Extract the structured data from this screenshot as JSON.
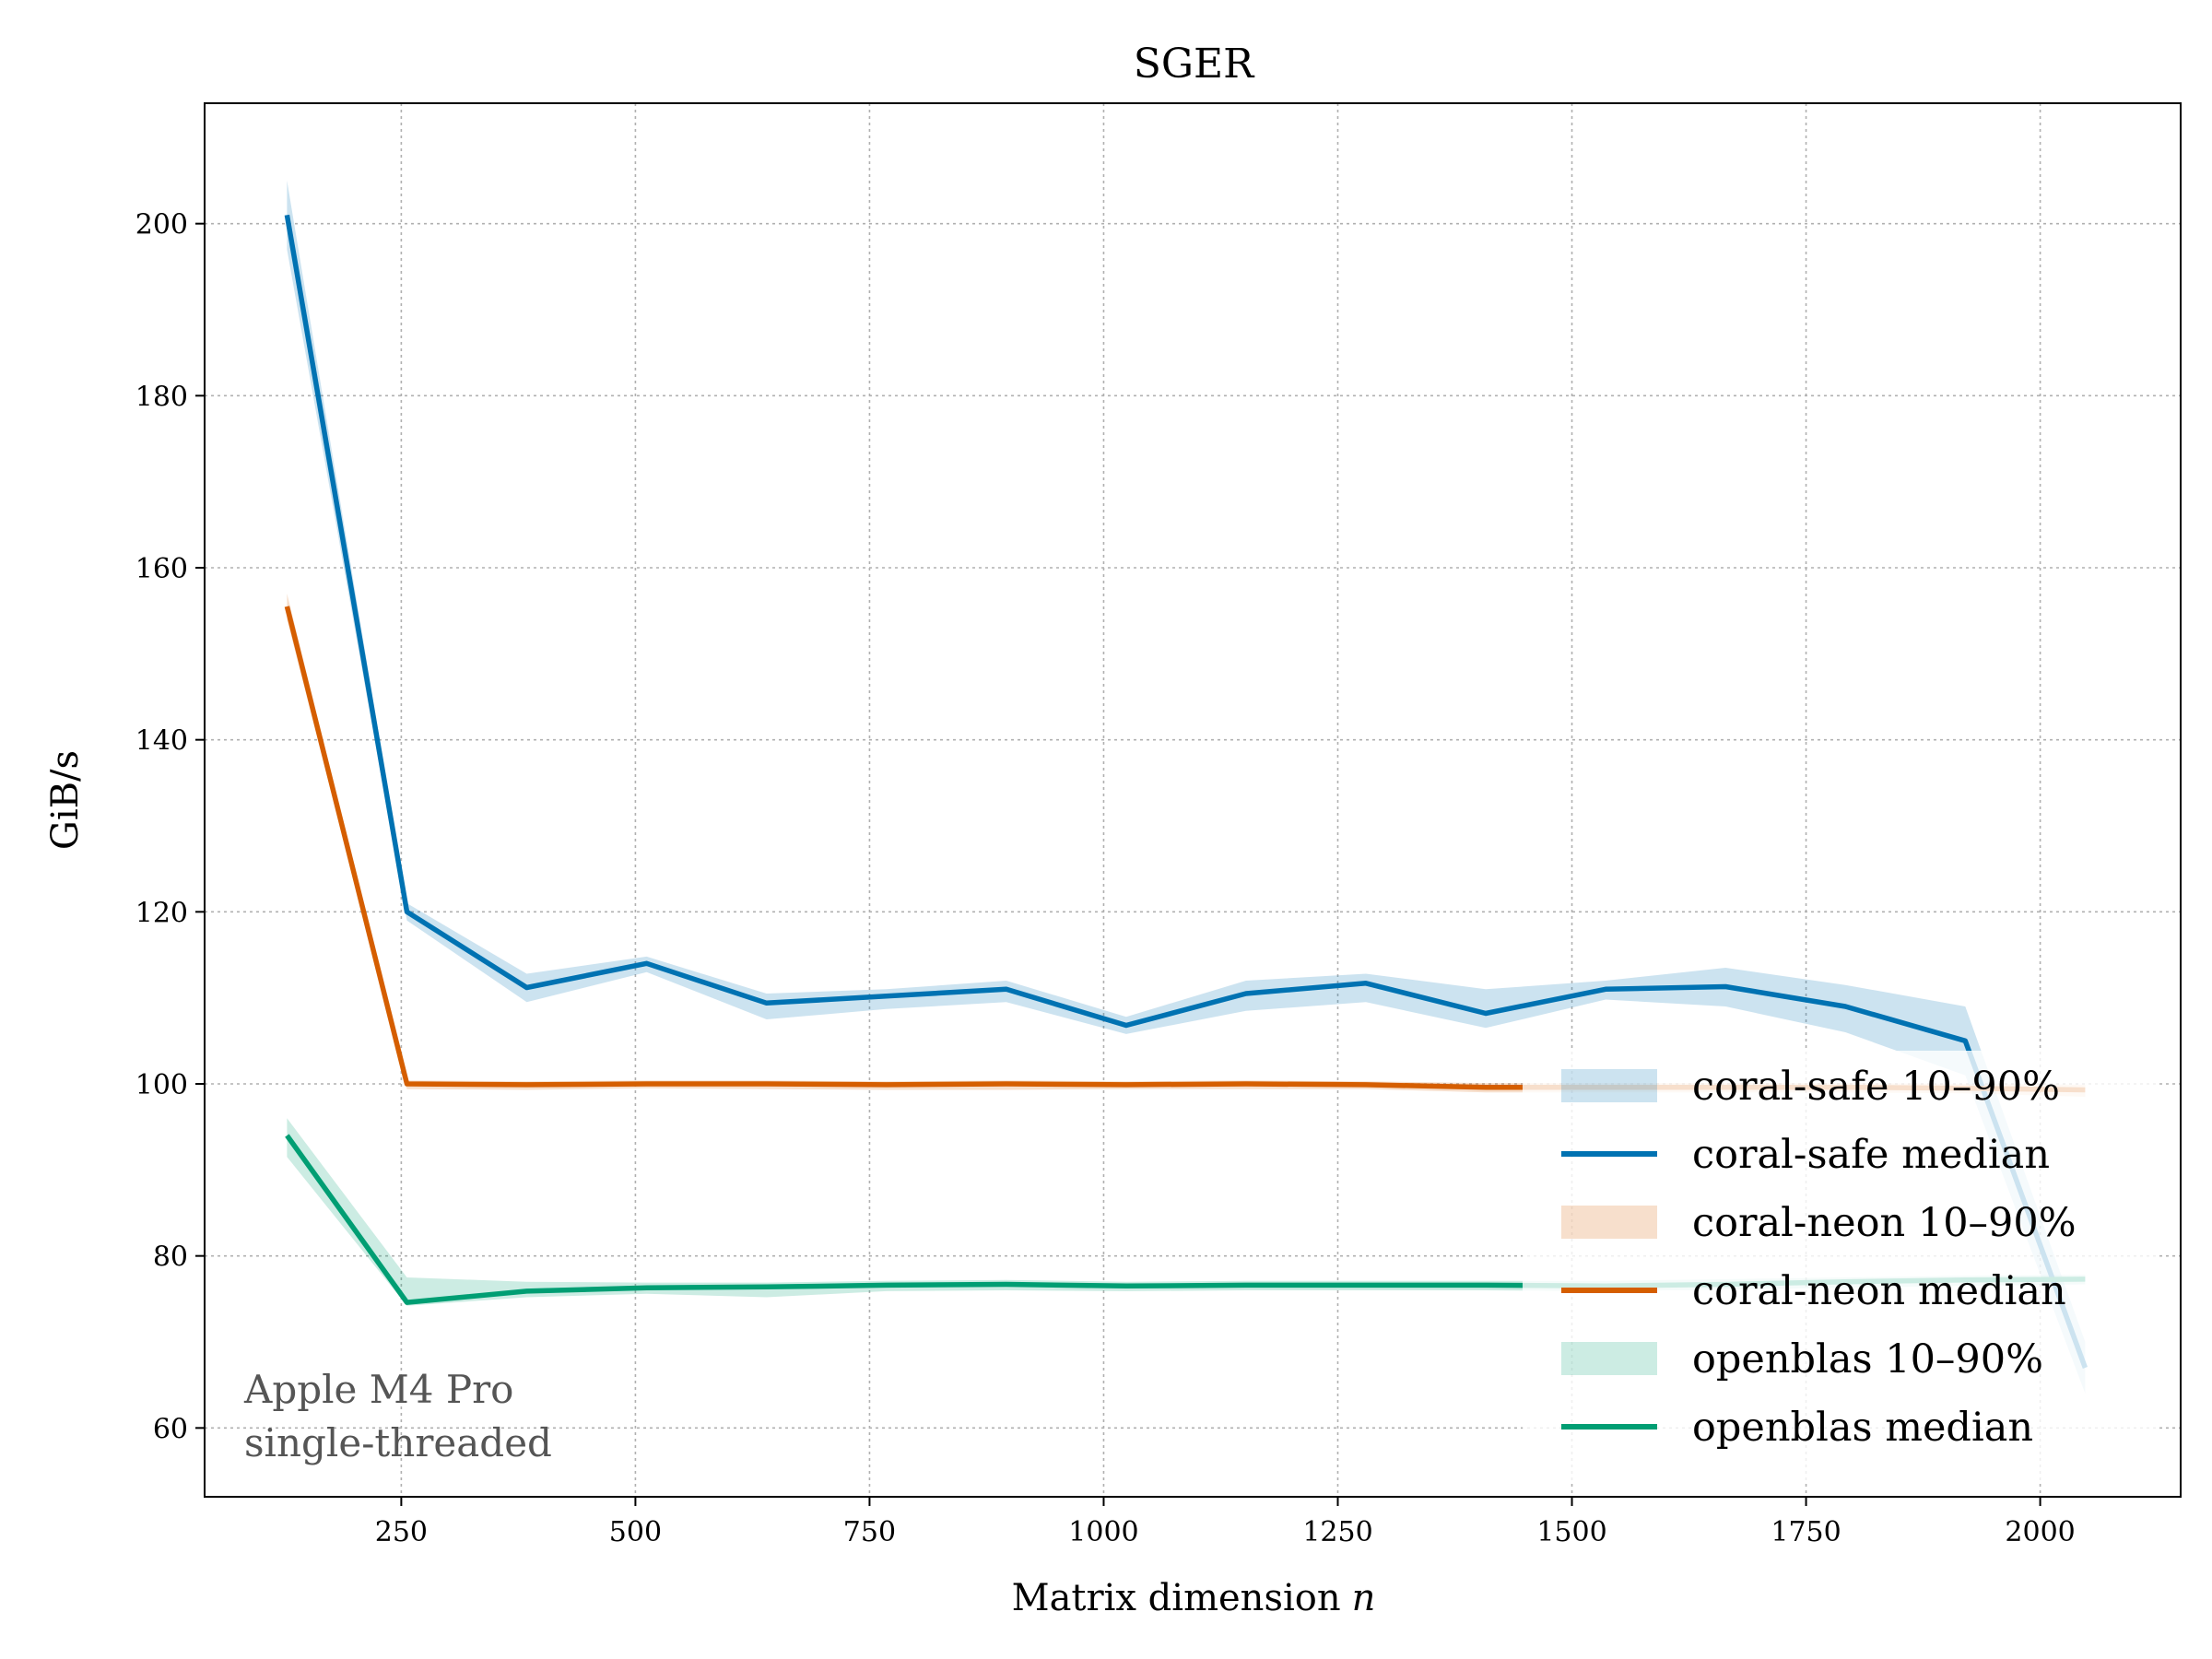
{
  "chart_data": {
    "type": "line",
    "title": "SGER",
    "xlabel": "Matrix dimension",
    "xlabel_var": "n",
    "ylabel": "GiB/s",
    "xlim": [
      40,
      2150
    ],
    "ylim": [
      52,
      214
    ],
    "xticks": [
      250,
      500,
      750,
      1000,
      1250,
      1500,
      1750,
      2000
    ],
    "yticks": [
      60,
      80,
      100,
      120,
      140,
      160,
      180,
      200
    ],
    "grid": true,
    "legend_position": "lower-right",
    "annotation": [
      "Apple M4 Pro",
      "single-threaded"
    ],
    "x": [
      128,
      256,
      384,
      512,
      640,
      768,
      896,
      1024,
      1152,
      1280,
      1408,
      1536,
      1664,
      1792,
      1920,
      2048
    ],
    "series": [
      {
        "name": "coral-safe",
        "color": "#0072b2",
        "band_label": "coral-safe 10–90%",
        "median_label": "coral-safe median",
        "median": [
          201,
          120,
          111.2,
          114,
          109.4,
          110.2,
          111,
          106.8,
          110.5,
          111.7,
          108.2,
          111,
          111.3,
          109,
          105,
          67
        ],
        "p10": [
          197,
          119,
          109.5,
          113,
          107.5,
          108.7,
          109.5,
          105.8,
          108.5,
          109.5,
          106.5,
          109.8,
          109,
          106,
          101,
          64
        ],
        "p90": [
          205,
          121,
          112.8,
          114.8,
          110.5,
          111,
          112,
          107.8,
          112,
          112.8,
          111,
          112,
          113.5,
          111.5,
          109,
          70
        ]
      },
      {
        "name": "coral-neon",
        "color": "#d55e00",
        "band_label": "coral-neon 10–90%",
        "median_label": "coral-neon median",
        "median": [
          155.5,
          100,
          99.9,
          100,
          100,
          99.9,
          100,
          99.9,
          100,
          99.9,
          99.6,
          99.6,
          99.6,
          99.6,
          99.5,
          99.3
        ],
        "p10": [
          154,
          99.4,
          99.3,
          99.5,
          99.4,
          99.3,
          99.3,
          99.4,
          99.4,
          99.4,
          99,
          99,
          99,
          99,
          98.9,
          98.5
        ],
        "p90": [
          157,
          100.4,
          100.3,
          100.4,
          100.4,
          100.3,
          100.4,
          100.3,
          100.4,
          100.3,
          100.1,
          100.1,
          100.1,
          100.1,
          100,
          99.9
        ]
      },
      {
        "name": "openblas",
        "color": "#009e73",
        "band_label": "openblas 10–90%",
        "median_label": "openblas median",
        "median": [
          94,
          74.6,
          75.9,
          76.3,
          76.4,
          76.6,
          76.7,
          76.5,
          76.6,
          76.6,
          76.6,
          76.5,
          76.7,
          77,
          77.2,
          77.3
        ],
        "p10": [
          91.5,
          74.2,
          75.2,
          75.6,
          75.2,
          75.9,
          76,
          75.9,
          76,
          76,
          76,
          75.9,
          76.1,
          76.3,
          76.5,
          76.7
        ],
        "p90": [
          96,
          77.5,
          77,
          76.9,
          76.9,
          77.1,
          77.2,
          77,
          77.1,
          77.1,
          77.1,
          77.1,
          77.3,
          77.5,
          77.7,
          77.8
        ]
      }
    ]
  }
}
